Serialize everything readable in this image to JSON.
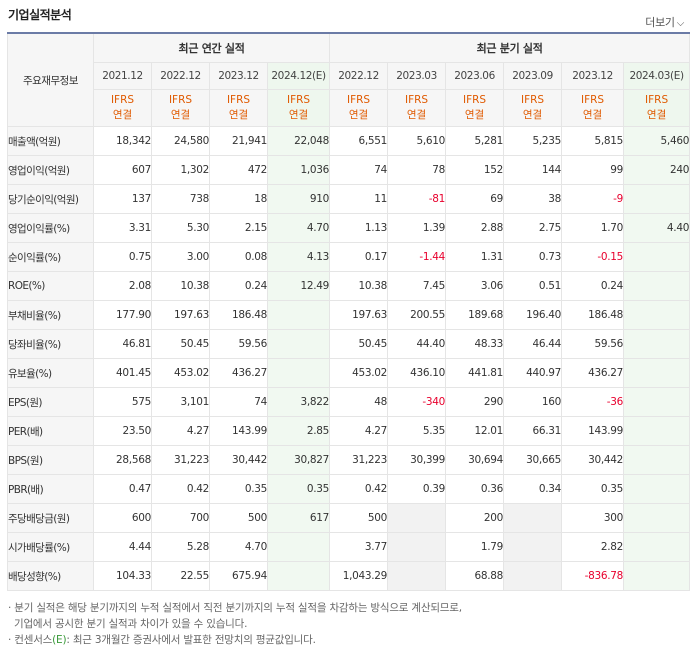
{
  "title": "기업실적분석",
  "more_label": "더보기",
  "more_icon": "chevron-down-icon",
  "header": {
    "row_label": "주요재무정보",
    "annual_group": "최근 연간 실적",
    "quarter_group": "최근 분기 실적",
    "annual_dates": [
      "2021.12",
      "2022.12",
      "2023.12",
      "2024.12(E)"
    ],
    "quarter_dates": [
      "2022.12",
      "2023.03",
      "2023.06",
      "2023.09",
      "2023.12",
      "2024.03(E)"
    ],
    "ifrs_line1": "IFRS",
    "ifrs_line2": "연결"
  },
  "rows": [
    {
      "label": "매출액(억원)",
      "values": [
        "18,342",
        "24,580",
        "21,941",
        "22,048",
        "6,551",
        "5,610",
        "5,281",
        "5,235",
        "5,815",
        "5,460"
      ]
    },
    {
      "label": "영업이익(억원)",
      "values": [
        "607",
        "1,302",
        "472",
        "1,036",
        "74",
        "78",
        "152",
        "144",
        "99",
        "240"
      ]
    },
    {
      "label": "당기순이익(억원)",
      "values": [
        "137",
        "738",
        "18",
        "910",
        "11",
        "-81",
        "69",
        "38",
        "-9",
        ""
      ]
    },
    {
      "label": "영업이익률(%)",
      "values": [
        "3.31",
        "5.30",
        "2.15",
        "4.70",
        "1.13",
        "1.39",
        "2.88",
        "2.75",
        "1.70",
        "4.40"
      ]
    },
    {
      "label": "순이익률(%)",
      "values": [
        "0.75",
        "3.00",
        "0.08",
        "4.13",
        "0.17",
        "-1.44",
        "1.31",
        "0.73",
        "-0.15",
        ""
      ]
    },
    {
      "label": "ROE(%)",
      "values": [
        "2.08",
        "10.38",
        "0.24",
        "12.49",
        "10.38",
        "7.45",
        "3.06",
        "0.51",
        "0.24",
        ""
      ]
    },
    {
      "label": "부채비율(%)",
      "values": [
        "177.90",
        "197.63",
        "186.48",
        "",
        "197.63",
        "200.55",
        "189.68",
        "196.40",
        "186.48",
        ""
      ]
    },
    {
      "label": "당좌비율(%)",
      "values": [
        "46.81",
        "50.45",
        "59.56",
        "",
        "50.45",
        "44.40",
        "48.33",
        "46.44",
        "59.56",
        ""
      ]
    },
    {
      "label": "유보율(%)",
      "values": [
        "401.45",
        "453.02",
        "436.27",
        "",
        "453.02",
        "436.10",
        "441.81",
        "440.97",
        "436.27",
        ""
      ]
    },
    {
      "label": "EPS(원)",
      "values": [
        "575",
        "3,101",
        "74",
        "3,822",
        "48",
        "-340",
        "290",
        "160",
        "-36",
        ""
      ]
    },
    {
      "label": "PER(배)",
      "values": [
        "23.50",
        "4.27",
        "143.99",
        "2.85",
        "4.27",
        "5.35",
        "12.01",
        "66.31",
        "143.99",
        ""
      ]
    },
    {
      "label": "BPS(원)",
      "values": [
        "28,568",
        "31,223",
        "30,442",
        "30,827",
        "31,223",
        "30,399",
        "30,694",
        "30,665",
        "30,442",
        ""
      ]
    },
    {
      "label": "PBR(배)",
      "values": [
        "0.47",
        "0.42",
        "0.35",
        "0.35",
        "0.42",
        "0.39",
        "0.36",
        "0.34",
        "0.35",
        ""
      ]
    },
    {
      "label": "주당배당금(원)",
      "values": [
        "600",
        "700",
        "500",
        "617",
        "500",
        "",
        "200",
        "",
        "300",
        ""
      ]
    },
    {
      "label": "시가배당률(%)",
      "values": [
        "4.44",
        "5.28",
        "4.70",
        "",
        "3.77",
        "",
        "1.79",
        "",
        "2.82",
        ""
      ]
    },
    {
      "label": "배당성향(%)",
      "values": [
        "104.33",
        "22.55",
        "675.94",
        "",
        "1,043.29",
        "",
        "68.88",
        "",
        "-836.78",
        ""
      ]
    }
  ],
  "notes": [
    "· 분기 실적은 해당 분기까지의 누적 실적에서 직전 분기까지의 누적 실적을 차감하는 방식으로 계산되므로,",
    "  기업에서 공시한 분기 실적과 차이가 있을 수 있습니다.",
    "· 컨센서스",
    "(E)",
    ": 최근 3개월간 증권사에서 발표한 전망치의 평균값입니다."
  ],
  "colors": {
    "ifrs": "#e05a00",
    "negative": "#e8002d",
    "estimate_bg": "#f1f9f1",
    "top_border": "#6b7ba6"
  }
}
